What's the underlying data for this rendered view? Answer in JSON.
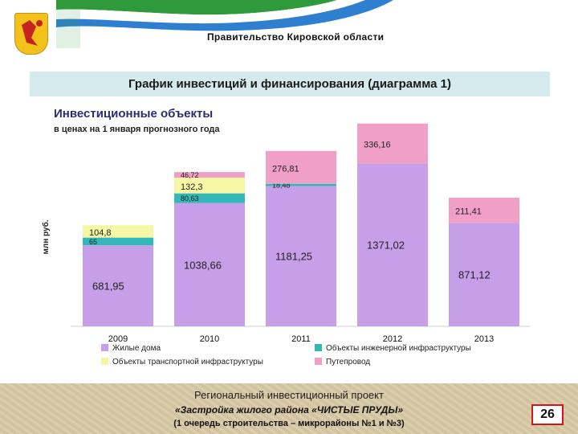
{
  "header": {
    "government": "Правительство Кировской области",
    "coat_of_arms_icon": "kirov-coat-of-arms-icon",
    "flag_colors": [
      "#ffffff",
      "#2f9a3c",
      "#2e7fd0"
    ]
  },
  "title_bar": {
    "text": "График инвестиций и финансирования (диаграмма 1)",
    "background": "#d4eaed"
  },
  "chart_data": {
    "type": "bar",
    "stacked": true,
    "title": "Инвестиционные объекты",
    "subtitle": "в ценах на 1 января прогнозного года",
    "ylabel": "млн руб.",
    "categories": [
      "2009",
      "2010",
      "2011",
      "2012",
      "2013"
    ],
    "series": [
      {
        "name": "Жилые дома",
        "color": "#c79ee8",
        "values": [
          681.95,
          1038.66,
          1181.25,
          1371.02,
          871.12
        ],
        "labels": [
          "681,95",
          "1038,66",
          "1181,25",
          "1371,02",
          "871,12"
        ]
      },
      {
        "name": "Объекты инженерной инфраструктуры",
        "color": "#34b7b8",
        "values": [
          65,
          80.63,
          18.48,
          0,
          0
        ],
        "labels": [
          "65",
          "80,63",
          "18,48",
          "",
          ""
        ]
      },
      {
        "name": "Объекты транспортной инфраструктуры",
        "color": "#f6f7a6",
        "values": [
          104.8,
          132.3,
          0,
          0,
          0
        ],
        "labels": [
          "104,8",
          "132,3",
          "",
          "",
          ""
        ]
      },
      {
        "name": "Путепровод",
        "color": "#f0a0c6",
        "values": [
          0,
          46.72,
          276.81,
          336.16,
          211.41
        ],
        "labels": [
          "",
          "46,72",
          "276,81",
          "336,16",
          "211,41"
        ]
      }
    ],
    "ylim": [
      0,
      1800
    ],
    "grid": false,
    "legend_position": "bottom"
  },
  "footer": {
    "line1": "Региональный инвестиционный проект",
    "line2": "«Застройка жилого района «ЧИСТЫЕ ПРУДЫ»",
    "line3": "(1 очередь строительства – микрорайоны №1 и №3)",
    "page_number": "26",
    "page_border_color": "#cc1a1a"
  }
}
